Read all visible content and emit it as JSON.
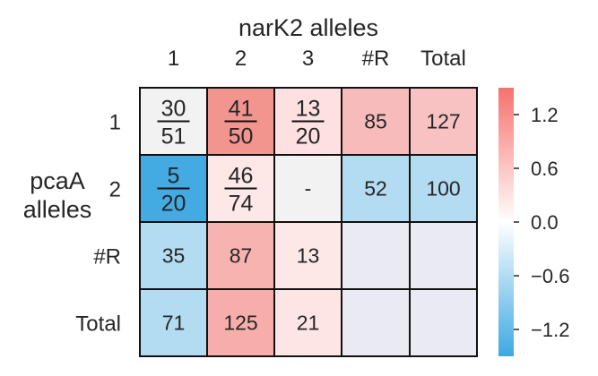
{
  "chart_data": {
    "type": "heatmap",
    "column_axis_title": "narK2 alleles",
    "row_axis_title_lines": [
      "pcaA",
      "alleles"
    ],
    "columns": [
      "1",
      "2",
      "3",
      "#R",
      "Total"
    ],
    "rows": [
      "1",
      "2",
      "#R",
      "Total"
    ],
    "cells": [
      [
        {
          "kind": "frac",
          "num": "30",
          "den": "51",
          "color": "#f2f2f2"
        },
        {
          "kind": "frac",
          "num": "41",
          "den": "50",
          "color": "#f2958e"
        },
        {
          "kind": "frac",
          "num": "13",
          "den": "20",
          "color": "#fde0df"
        },
        {
          "kind": "text",
          "text": "85",
          "color": "#f8bbbb"
        },
        {
          "kind": "text",
          "text": "127",
          "color": "#f9c2c2"
        }
      ],
      [
        {
          "kind": "frac",
          "num": "5",
          "den": "20",
          "color": "#43aae2"
        },
        {
          "kind": "frac",
          "num": "46",
          "den": "74",
          "color": "#fde7e7"
        },
        {
          "kind": "text",
          "text": "-",
          "color": "#f2f2f2"
        },
        {
          "kind": "text",
          "text": "52",
          "color": "#b3dbf1"
        },
        {
          "kind": "text",
          "text": "100",
          "color": "#b3dbf1"
        }
      ],
      [
        {
          "kind": "text",
          "text": "35",
          "color": "#b3dbf1"
        },
        {
          "kind": "text",
          "text": "87",
          "color": "#f7b3b0"
        },
        {
          "kind": "text",
          "text": "13",
          "color": "#fde7e7"
        },
        {
          "kind": "text",
          "text": "",
          "color": "#eaeaf2"
        },
        {
          "kind": "text",
          "text": "",
          "color": "#eaeaf2"
        }
      ],
      [
        {
          "kind": "text",
          "text": "71",
          "color": "#b3dbf1"
        },
        {
          "kind": "text",
          "text": "125",
          "color": "#f7aeaa"
        },
        {
          "kind": "text",
          "text": "21",
          "color": "#fde5e5"
        },
        {
          "kind": "text",
          "text": "",
          "color": "#eaeaf2"
        },
        {
          "kind": "text",
          "text": "",
          "color": "#eaeaf2"
        }
      ]
    ],
    "colorbar": {
      "min": -1.5,
      "max": 1.5,
      "ticks": [
        1.2,
        0.6,
        0.0,
        -0.6,
        -1.2
      ],
      "tick_labels": [
        "1.2",
        "0.6",
        "0.0",
        "−0.6",
        "−1.2"
      ],
      "colors": [
        "#f7716d",
        "#ffffff",
        "#3ea9e2"
      ]
    }
  }
}
